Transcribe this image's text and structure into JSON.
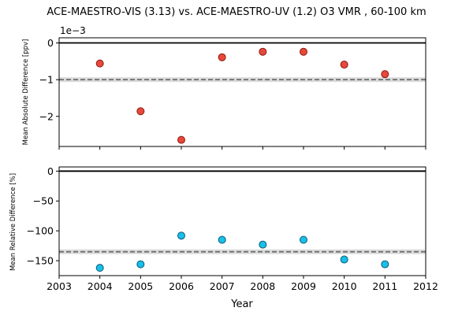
{
  "figure": {
    "title": "ACE-MAESTRO-VIS (3.13) vs. ACE-MAESTRO-UV (1.2) O3 VMR , 60-100 km",
    "xlabel": "Year"
  },
  "chart_data": [
    {
      "type": "scatter",
      "name": "top",
      "ylabel": "Mean Absolute Difference [ppv]",
      "offset_text": "1e−3",
      "x": [
        2004,
        2005,
        2006,
        2007,
        2008,
        2009,
        2010,
        2011
      ],
      "y": [
        -0.00056,
        -0.00186,
        -0.00264,
        -0.00039,
        -0.00024,
        -0.00024,
        -0.00059,
        -0.00085
      ],
      "xlim": [
        2003,
        2012
      ],
      "ylim": [
        -0.00282,
        0.00014
      ],
      "yticks": [
        0,
        -0.001,
        -0.002
      ],
      "ytick_labels": [
        "0",
        "−1",
        "−2"
      ],
      "zero_line": 0,
      "mean_line": -0.001,
      "marker_color": "#e8483a",
      "marker_edge": "#8b1a10",
      "mean_line_color": "#6e6e6e",
      "band_color": "#cfcfcf"
    },
    {
      "type": "scatter",
      "name": "bottom",
      "ylabel": "Mean Relative Difference [%]",
      "x": [
        2004,
        2005,
        2006,
        2007,
        2008,
        2009,
        2010,
        2011
      ],
      "y": [
        -162,
        -156,
        -108,
        -115,
        -123,
        -115,
        -148,
        -156
      ],
      "xlim": [
        2003,
        2012
      ],
      "ylim": [
        -175,
        7
      ],
      "yticks": [
        0,
        -50,
        -100,
        -150
      ],
      "ytick_labels": [
        "0",
        "−50",
        "−100",
        "−150"
      ],
      "xticks": [
        2003,
        2004,
        2005,
        2006,
        2007,
        2008,
        2009,
        2010,
        2011,
        2012
      ],
      "xtick_labels": [
        "2003",
        "2004",
        "2005",
        "2006",
        "2007",
        "2008",
        "2009",
        "2010",
        "2011",
        "2012"
      ],
      "zero_line": 0,
      "mean_line": -135,
      "marker_color": "#18c0e8",
      "marker_edge": "#0a5a78",
      "mean_line_color": "#6e6e6e",
      "band_color": "#cfcfcf"
    }
  ]
}
